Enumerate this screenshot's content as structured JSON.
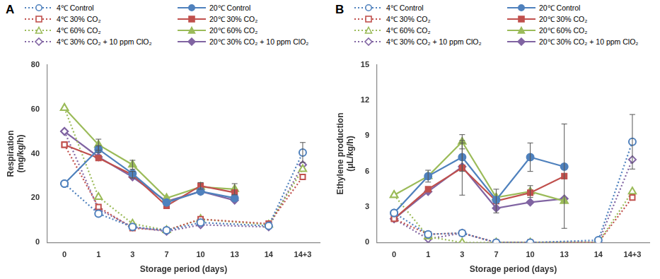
{
  "chart_data": [
    {
      "type": "line",
      "label": "A",
      "legend": "top",
      "grid": false,
      "x_label": "Storage period (days)",
      "y_label": [
        "Respiration",
        "(mg/kg/h)"
      ],
      "categories": [
        "0",
        "1",
        "3",
        "7",
        "10",
        "13",
        "14",
        "14+3"
      ],
      "ylim": [
        0,
        80
      ],
      "yticks": [
        0,
        20,
        40,
        60,
        80
      ],
      "series": [
        {
          "name": "4℃ Control",
          "color": "#4f81bd",
          "marker": "open_circle",
          "line_style": "dotted",
          "values": [
            26.5,
            13,
            7,
            5.5,
            9,
            null,
            7.5,
            40.5
          ],
          "errors": [
            null,
            null,
            null,
            null,
            null,
            null,
            null,
            4.5
          ]
        },
        {
          "name": "20℃ Control",
          "color": "#4f81bd",
          "marker": "circle",
          "line_style": "solid",
          "values": [
            26.5,
            42,
            31,
            18,
            23,
            20,
            null,
            null
          ],
          "errors": [
            null,
            1.5,
            null,
            null,
            null,
            null,
            null,
            null
          ]
        },
        {
          "name": "4℃ 30% CO₂",
          "color": "#c0504d",
          "marker": "open_square",
          "line_style": "dotted",
          "values": [
            44,
            16,
            6.5,
            5.5,
            10.5,
            null,
            8.5,
            29.5
          ],
          "errors": [
            null,
            null,
            null,
            null,
            null,
            null,
            null,
            null
          ]
        },
        {
          "name": "20℃ 30% CO₂",
          "color": "#c0504d",
          "marker": "square",
          "line_style": "solid",
          "values": [
            44,
            38,
            30.5,
            16.5,
            25.5,
            22.5,
            null,
            null
          ],
          "errors": [
            null,
            null,
            1.5,
            null,
            1.5,
            null,
            null,
            null
          ]
        },
        {
          "name": "4℃ 60% CO₂",
          "color": "#9bbb59",
          "marker": "open_triangle",
          "line_style": "dotted",
          "values": [
            60.5,
            20.5,
            8.5,
            5.5,
            10.5,
            null,
            8,
            33
          ],
          "errors": [
            null,
            null,
            null,
            null,
            null,
            null,
            null,
            null
          ]
        },
        {
          "name": "20℃ 60% CO₂",
          "color": "#9bbb59",
          "marker": "triangle",
          "line_style": "solid",
          "values": [
            60.5,
            44,
            35,
            20,
            25,
            24,
            null,
            null
          ],
          "errors": [
            null,
            2.5,
            2,
            null,
            null,
            2.5,
            null,
            null
          ]
        },
        {
          "name": "4℃ 30% CO₂ + 10 ppm ClO₂",
          "color": "#8064a2",
          "marker": "open_diamond",
          "line_style": "dotted",
          "values": [
            50,
            15,
            7,
            5,
            8,
            null,
            7,
            35
          ],
          "errors": [
            null,
            null,
            null,
            null,
            null,
            null,
            null,
            null
          ]
        },
        {
          "name": "20℃ 30% CO₂ + 10 ppm ClO₂",
          "color": "#8064a2",
          "marker": "diamond",
          "line_style": "solid",
          "values": [
            50,
            38.5,
            29.5,
            18.5,
            23,
            19,
            null,
            null
          ],
          "errors": [
            null,
            null,
            null,
            null,
            null,
            null,
            null,
            null
          ]
        }
      ]
    },
    {
      "type": "line",
      "label": "B",
      "legend": "top",
      "grid": false,
      "x_label": "Storage period (days)",
      "y_label": [
        "Ethylene production",
        "(μL/kg/h)"
      ],
      "categories": [
        "0",
        "1",
        "3",
        "7",
        "10",
        "13",
        "14",
        "14+3"
      ],
      "ylim": [
        0,
        15
      ],
      "yticks": [
        0,
        3,
        6,
        9,
        12,
        15
      ],
      "series": [
        {
          "name": "4℃ Control",
          "color": "#4f81bd",
          "marker": "open_circle",
          "line_style": "dotted",
          "values": [
            2.5,
            0.7,
            0.8,
            0,
            0,
            null,
            0.2,
            8.5
          ],
          "errors": [
            null,
            null,
            null,
            null,
            null,
            null,
            null,
            2.3
          ]
        },
        {
          "name": "20℃ Control",
          "color": "#4f81bd",
          "marker": "circle",
          "line_style": "solid",
          "values": [
            2.5,
            5.6,
            7.2,
            3.6,
            7.2,
            6.4,
            null,
            null
          ],
          "errors": [
            null,
            0.5,
            1.2,
            null,
            1.2,
            null,
            null,
            null
          ]
        },
        {
          "name": "4℃ 30% CO₂",
          "color": "#c0504d",
          "marker": "open_square",
          "line_style": "dotted",
          "values": [
            2,
            0.7,
            0.8,
            0,
            0,
            null,
            0,
            3.8
          ],
          "errors": [
            null,
            null,
            null,
            null,
            null,
            null,
            null,
            null
          ]
        },
        {
          "name": "20℃ 30% CO₂",
          "color": "#c0504d",
          "marker": "square",
          "line_style": "solid",
          "values": [
            2,
            4.5,
            6.3,
            3.5,
            4.2,
            5.6,
            null,
            null
          ],
          "errors": [
            null,
            null,
            2.3,
            1,
            null,
            4.4,
            null,
            null
          ]
        },
        {
          "name": "4℃ 60% CO₂",
          "color": "#9bbb59",
          "marker": "open_triangle",
          "line_style": "dotted",
          "values": [
            4,
            0.5,
            0,
            0,
            0,
            null,
            0,
            4.3
          ],
          "errors": [
            null,
            null,
            null,
            null,
            null,
            null,
            null,
            null
          ]
        },
        {
          "name": "20℃ 60% CO₂",
          "color": "#9bbb59",
          "marker": "triangle",
          "line_style": "solid",
          "values": [
            4,
            5.6,
            8.5,
            3.8,
            4.3,
            3.5,
            null,
            null
          ],
          "errors": [
            null,
            null,
            0.6,
            null,
            0.5,
            null,
            null,
            null
          ]
        },
        {
          "name": "4℃ 30% CO₂ + 10 ppm ClO₂",
          "color": "#8064a2",
          "marker": "open_diamond",
          "line_style": "dotted",
          "values": [
            2,
            0.3,
            0.8,
            0,
            0,
            null,
            0,
            7
          ],
          "errors": [
            null,
            null,
            null,
            null,
            null,
            null,
            null,
            null
          ]
        },
        {
          "name": "20℃ 30% CO₂ + 10 ppm ClO₂",
          "color": "#8064a2",
          "marker": "diamond",
          "line_style": "solid",
          "values": [
            2,
            4.3,
            6.4,
            2.9,
            3.4,
            3.7,
            null,
            null
          ],
          "errors": [
            null,
            null,
            null,
            null,
            null,
            null,
            null,
            null
          ]
        }
      ]
    }
  ]
}
